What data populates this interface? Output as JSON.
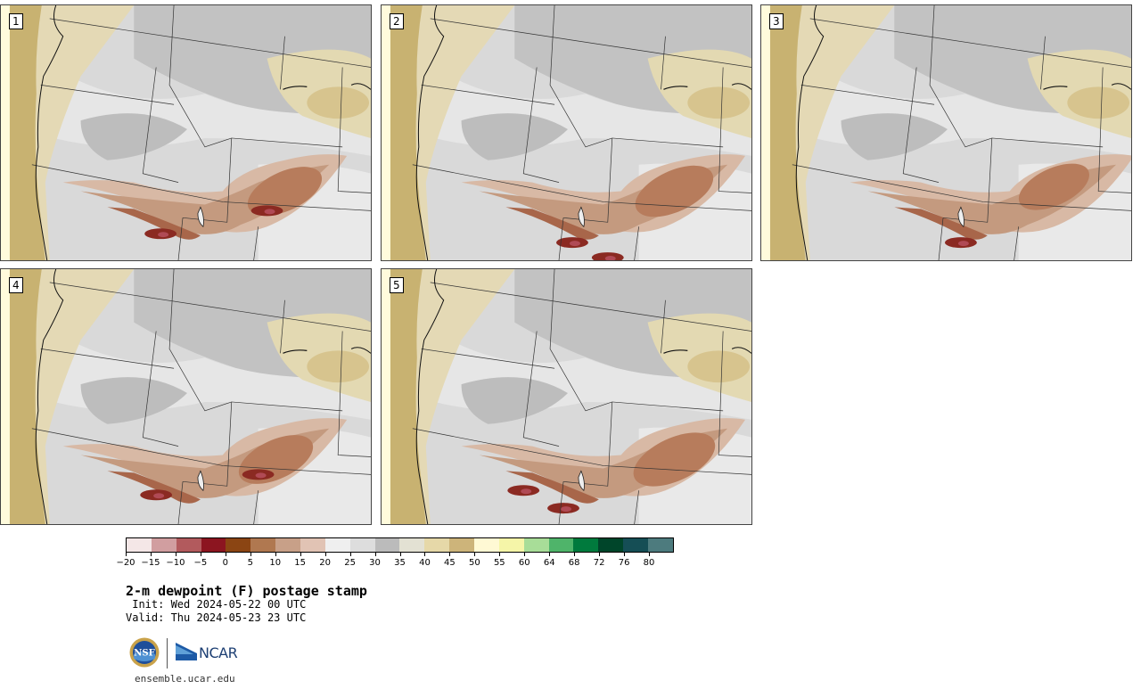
{
  "panels": [
    {
      "label": "1"
    },
    {
      "label": "2"
    },
    {
      "label": "3"
    },
    {
      "label": "4"
    },
    {
      "label": "5"
    }
  ],
  "colorbar": {
    "colors": [
      "#f4e7e7",
      "#d19ea0",
      "#b25a5d",
      "#8c1520",
      "#8b4513",
      "#b07850",
      "#c8a088",
      "#e1c3b4",
      "#efefef",
      "#dddddd",
      "#bbbbbb",
      "#e3e1d3",
      "#e6d8a8",
      "#cdb47a",
      "#fff9d4",
      "#f5f5a8",
      "#a8dd98",
      "#4fb46a",
      "#007a3d",
      "#00452a",
      "#154e55",
      "#4d7b7e"
    ],
    "tick_labels": [
      "−20",
      "−15",
      "−10",
      "−5",
      "0",
      "5",
      "10",
      "15",
      "20",
      "25",
      "30",
      "35",
      "40",
      "45",
      "50",
      "55",
      "60",
      "64",
      "68",
      "72",
      "76",
      "80"
    ]
  },
  "title": "2-m dewpoint (F) postage stamp",
  "init": " Init: Wed 2024-05-22 00 UTC",
  "valid": "Valid: Thu 2024-05-23 23 UTC",
  "logos": {
    "nsf": "NSF",
    "ncar": "NCAR"
  },
  "website": "ensemble.ucar.edu"
}
